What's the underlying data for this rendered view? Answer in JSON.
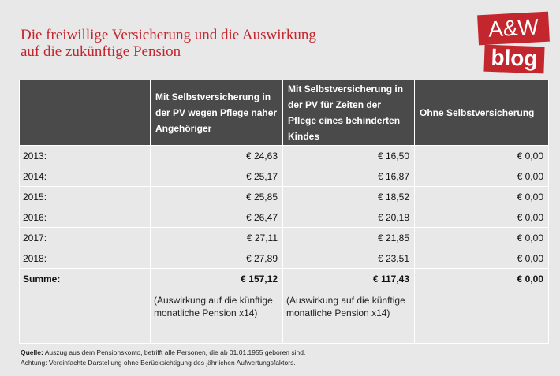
{
  "title_line1": "Die freiwillige Versicherung und die Auswirkung",
  "title_line2": "auf die zukünftige Pension",
  "logo": {
    "top": "A&W",
    "bottom": "blog"
  },
  "table": {
    "headers": [
      "",
      "Mit Selbstversicherung in der PV wegen Pflege naher Angehöriger",
      "Mit Selbstversicherung in der PV für Zeiten der Pflege eines behinderten Kindes",
      "Ohne Selbstversicherung"
    ],
    "rows": [
      [
        "2013:",
        "€ 24,63",
        "€ 16,50",
        "€ 0,00"
      ],
      [
        "2014:",
        "€ 25,17",
        "€ 16,87",
        "€ 0,00"
      ],
      [
        "2015:",
        "€ 25,85",
        "€ 18,52",
        "€ 0,00"
      ],
      [
        "2016:",
        "€ 26,47",
        "€ 20,18",
        "€ 0,00"
      ],
      [
        "2017:",
        "€ 27,11",
        "€ 21,85",
        "€ 0,00"
      ],
      [
        "2018:",
        "€ 27,89",
        "€ 23,51",
        "€ 0,00"
      ]
    ],
    "sum": [
      "Summe:",
      "€ 157,12",
      "€ 117,43",
      "€ 0,00"
    ],
    "note": [
      "",
      "(Auswirkung auf die künftige monatliche Pension x14)",
      "(Auswirkung auf die künftige monatliche Pension x14)",
      ""
    ]
  },
  "footer": {
    "source_label": "Quelle:",
    "source_text": "Auszug aus dem Pensionskonto, betrifft alle Personen, die ab 01.01.1955 geboren sind.",
    "note_text": "Achtung: Vereinfachte Darstellung ohne Berücksichtigung des jährlichen Aufwertungsfaktors."
  }
}
